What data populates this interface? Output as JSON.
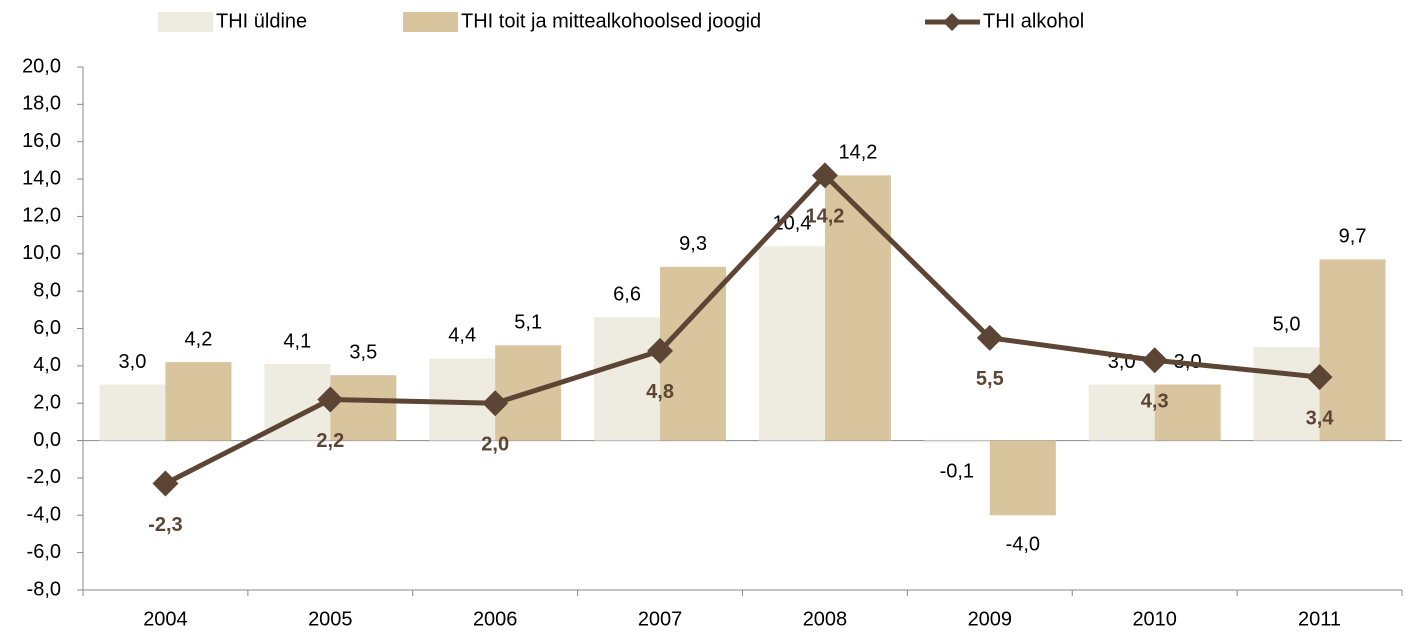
{
  "chart_data": {
    "type": "bar",
    "categories": [
      "2004",
      "2005",
      "2006",
      "2007",
      "2008",
      "2009",
      "2010",
      "2011"
    ],
    "series": [
      {
        "name": "THI üldine",
        "type": "bar",
        "color": "#eeebe0",
        "values": [
          3.0,
          4.1,
          4.4,
          6.6,
          10.4,
          -0.1,
          3.0,
          5.0
        ],
        "value_labels": [
          "3,0",
          "4,1",
          "4,4",
          "6,6",
          "10,4",
          "-0,1",
          "3,0",
          "5,0"
        ]
      },
      {
        "name": "THI toit ja mittealkohoolsed joogid",
        "type": "bar",
        "color": "#d8c49d",
        "values": [
          4.2,
          3.5,
          5.1,
          9.3,
          14.2,
          -4.0,
          3.0,
          9.7
        ],
        "value_labels": [
          "4,2",
          "3,5",
          "5,1",
          "9,3",
          "14,2",
          "-4,0",
          "3,0",
          "9,7"
        ]
      },
      {
        "name": "THI alkohol",
        "type": "line",
        "color": "#5c4535",
        "values": [
          -2.3,
          2.2,
          2.0,
          4.8,
          14.2,
          5.5,
          4.3,
          3.4
        ],
        "value_labels": [
          "-2,3",
          "2,2",
          "2,0",
          "4,8",
          "14,2",
          "5,5",
          "4,3",
          "3,4"
        ]
      }
    ],
    "ylim": [
      -8,
      20
    ],
    "yticks": [
      {
        "value": -8,
        "label": "-8,0"
      },
      {
        "value": -6,
        "label": "-6,0"
      },
      {
        "value": -4,
        "label": "-4,0"
      },
      {
        "value": -2,
        "label": "-2,0"
      },
      {
        "value": 0,
        "label": "0,0"
      },
      {
        "value": 2,
        "label": "2,0"
      },
      {
        "value": 4,
        "label": "4,0"
      },
      {
        "value": 6,
        "label": "6,0"
      },
      {
        "value": 8,
        "label": "8,0"
      },
      {
        "value": 10,
        "label": "10,0"
      },
      {
        "value": 12,
        "label": "12,0"
      },
      {
        "value": 14,
        "label": "14,0"
      },
      {
        "value": 16,
        "label": "16,0"
      },
      {
        "value": 18,
        "label": "18,0"
      },
      {
        "value": 20,
        "label": "20,0"
      }
    ],
    "grid": false,
    "legend": "top"
  }
}
